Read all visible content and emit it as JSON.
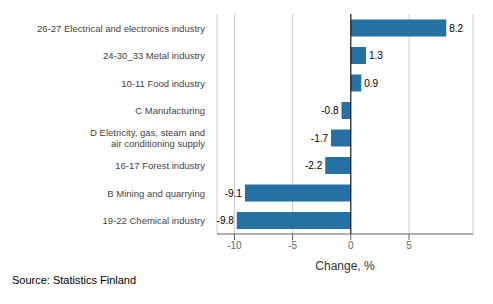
{
  "chart_data": {
    "type": "bar",
    "orientation": "horizontal",
    "categories": [
      "19-22 Chemical industry",
      "B Mining and quarrying",
      "16-17 Forest industry",
      "D Eletricity, gas, steam and\nair conditioning supply",
      "C Manufacturing",
      "10-11 Food industry",
      "24-30_33 Metal industry",
      "26-27 Electrical and electronics industry"
    ],
    "values": [
      -9.8,
      -9.1,
      -2.2,
      -1.7,
      -0.8,
      0.9,
      1.3,
      8.2
    ],
    "color": "#2471a3",
    "xlabel": "Change, %",
    "xlim": [
      -11.5,
      10.5
    ],
    "xticks": [
      -10,
      -5,
      0,
      5
    ],
    "grid": true,
    "data_labels": true,
    "annotations": [
      "Source: Statistics Finland"
    ]
  }
}
